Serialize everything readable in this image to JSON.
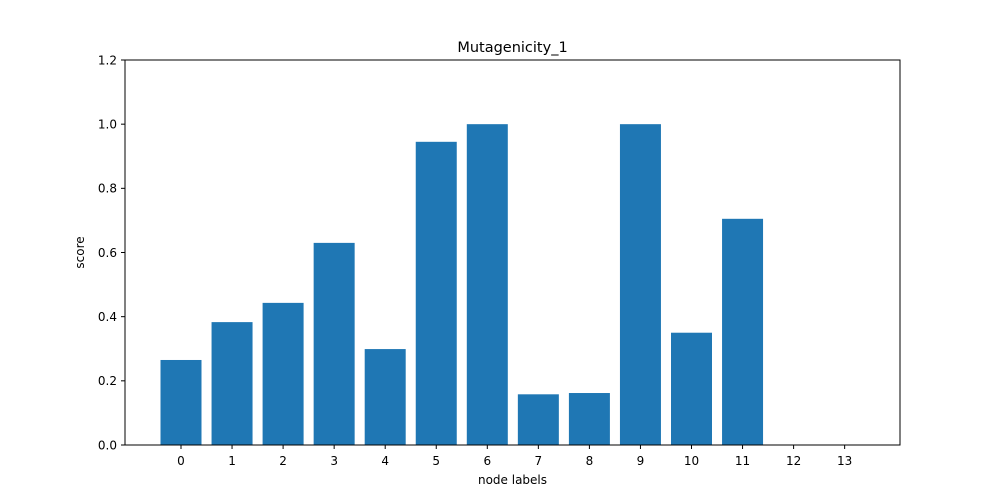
{
  "chart_data": {
    "type": "bar",
    "title": "Mutagenicity_1",
    "xlabel": "node labels",
    "ylabel": "score",
    "categories": [
      "0",
      "1",
      "2",
      "3",
      "4",
      "5",
      "6",
      "7",
      "8",
      "9",
      "10",
      "11",
      "12",
      "13"
    ],
    "values": [
      0.265,
      0.383,
      0.443,
      0.63,
      0.299,
      0.945,
      1.0,
      0.158,
      0.162,
      1.0,
      0.35,
      0.705,
      0.0,
      0.0
    ],
    "ylim": [
      0,
      1.2
    ],
    "yticks": [
      "0.0",
      "0.2",
      "0.4",
      "0.6",
      "0.8",
      "1.0",
      "1.2"
    ],
    "bar_color": "#1f77b4",
    "grid": false,
    "legend": "none"
  }
}
